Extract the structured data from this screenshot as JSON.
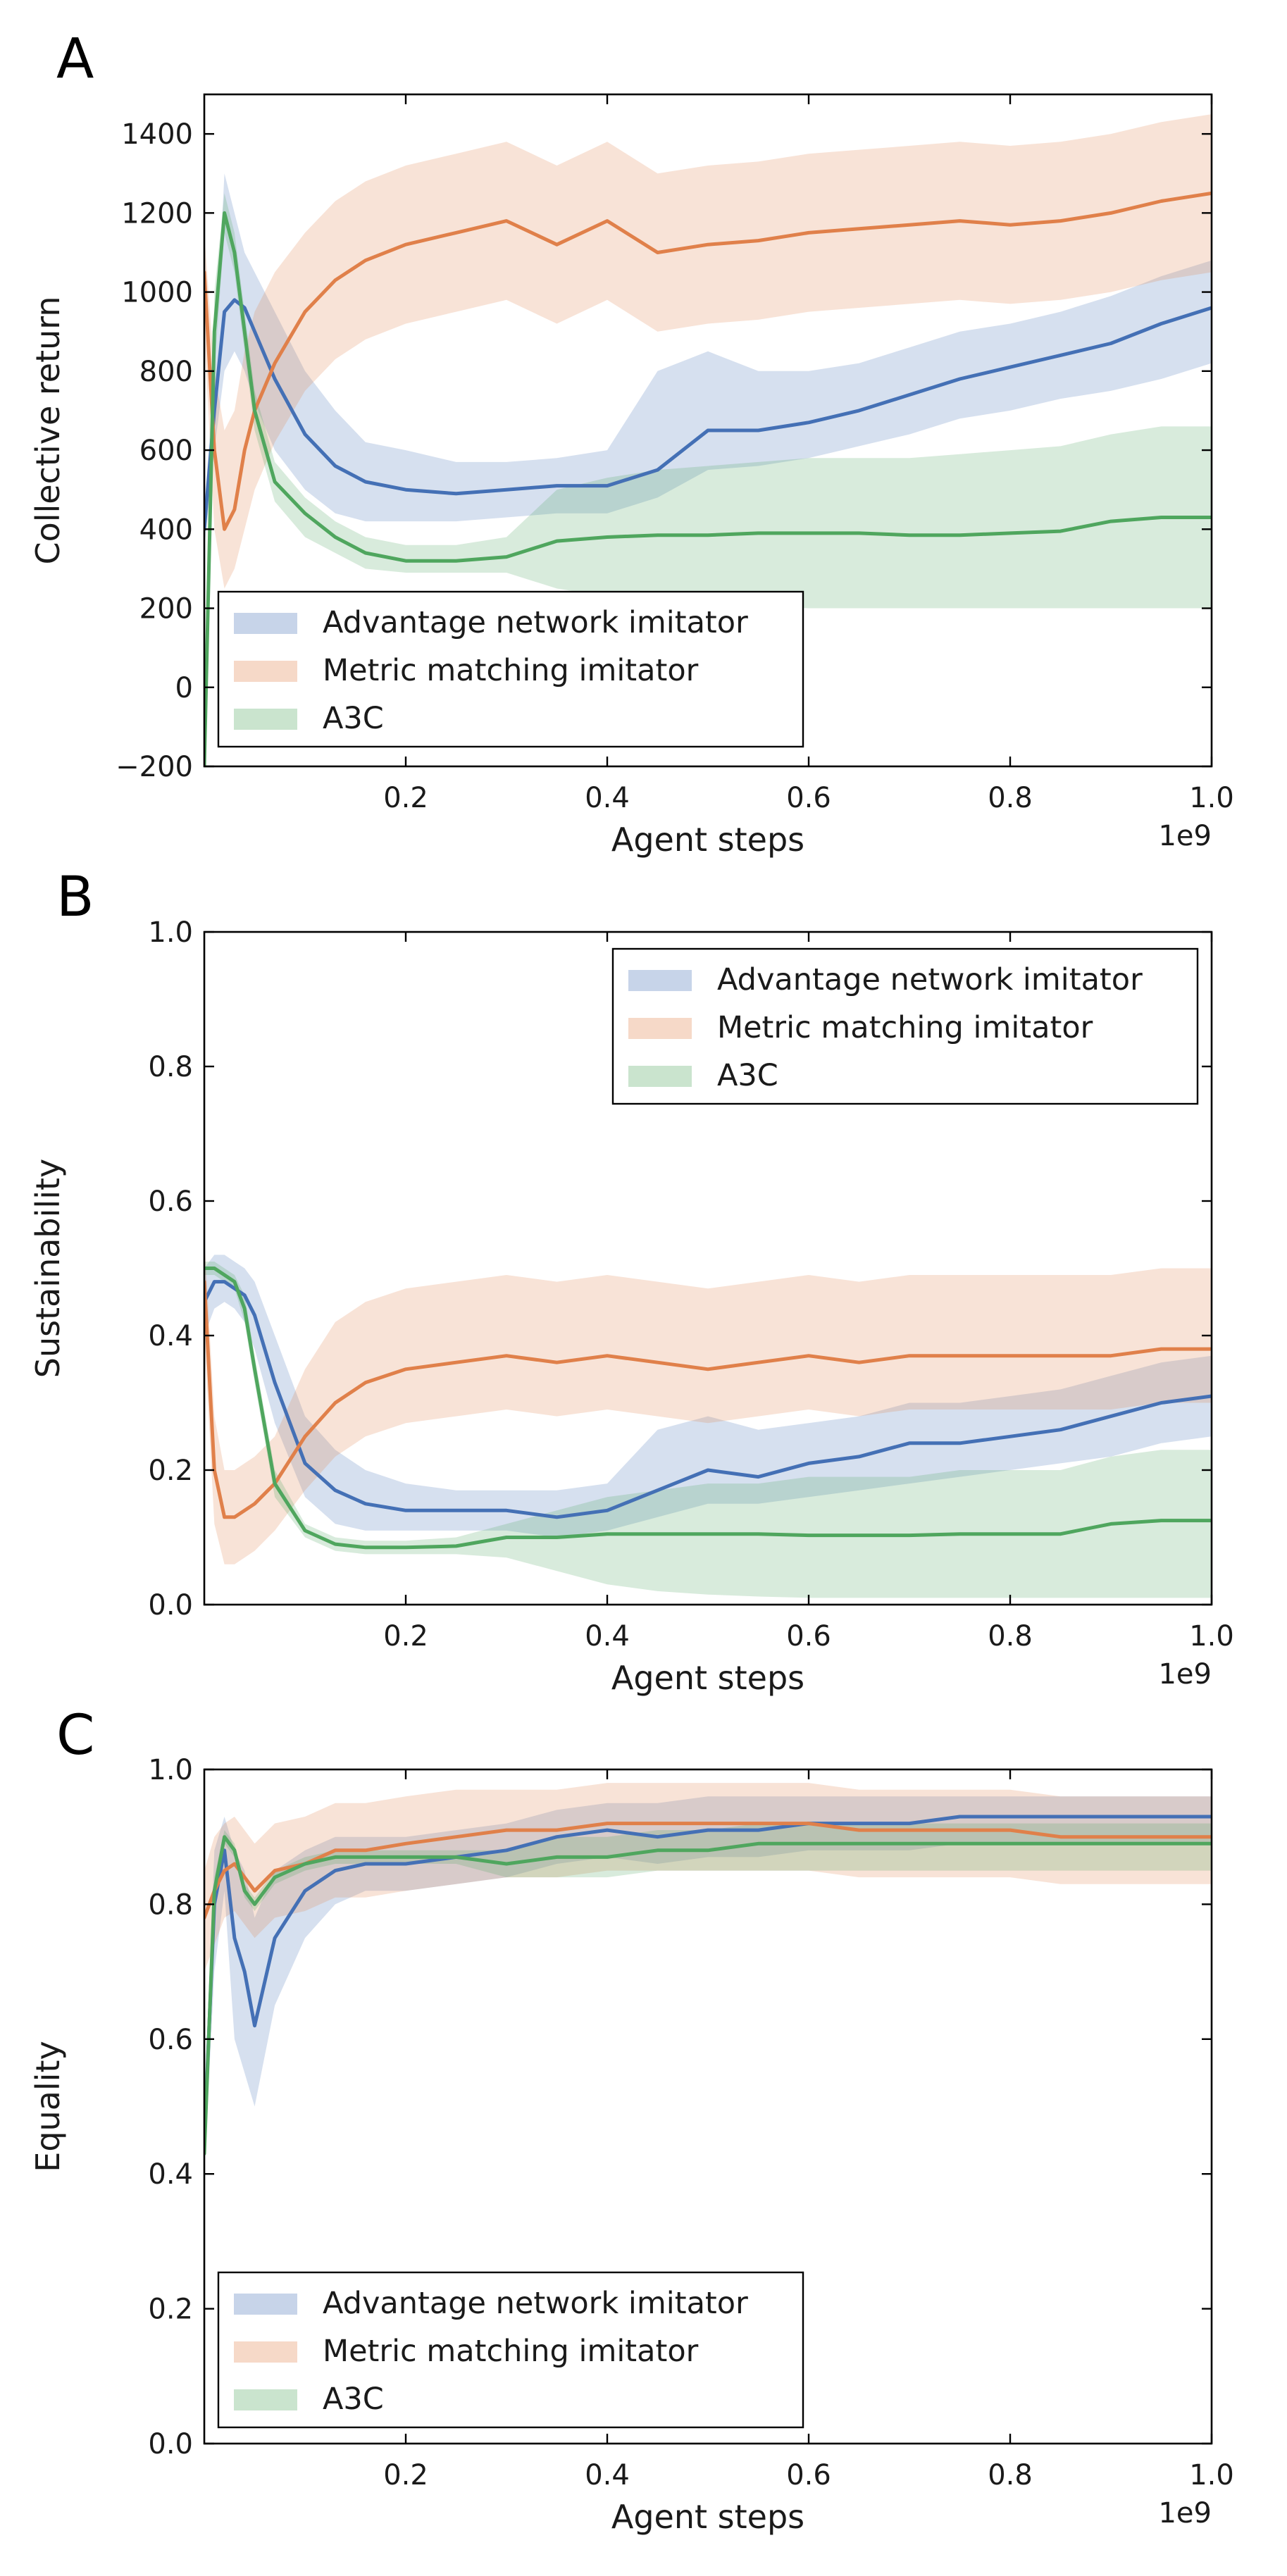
{
  "figure": {
    "colors": {
      "advantage": "#4470b5",
      "metric": "#e0804a",
      "a3c": "#4fa65e"
    },
    "band_opacity": 0.22
  },
  "chart_data": [
    {
      "panel": "A",
      "type": "line",
      "title": "",
      "xlabel": "Agent steps",
      "ylabel": "Collective return",
      "x_offset_label": "1e9",
      "xlim": [
        0,
        1.0
      ],
      "ylim": [
        -200,
        1500
      ],
      "xticks": [
        0.2,
        0.4,
        0.6,
        0.8,
        1.0
      ],
      "xtick_labels": [
        "0.2",
        "0.4",
        "0.6",
        "0.8",
        "1.0"
      ],
      "yticks": [
        -200,
        0,
        200,
        400,
        600,
        800,
        1000,
        1200,
        1400
      ],
      "ytick_labels": [
        "−200",
        "0",
        "200",
        "400",
        "600",
        "800",
        "1000",
        "1200",
        "1400"
      ],
      "legend_loc": "lower-left",
      "legend": [
        "Advantage network imitator",
        "Metric matching imitator",
        "A3C"
      ],
      "x": [
        0.0,
        0.01,
        0.02,
        0.03,
        0.04,
        0.05,
        0.07,
        0.1,
        0.13,
        0.16,
        0.2,
        0.25,
        0.3,
        0.35,
        0.4,
        0.45,
        0.5,
        0.55,
        0.6,
        0.65,
        0.7,
        0.75,
        0.8,
        0.85,
        0.9,
        0.95,
        1.0
      ],
      "series": [
        {
          "name": "Advantage network imitator",
          "key": "advantage",
          "values": [
            400,
            700,
            950,
            980,
            960,
            900,
            780,
            640,
            560,
            520,
            500,
            490,
            500,
            510,
            510,
            550,
            650,
            650,
            670,
            700,
            740,
            780,
            810,
            840,
            870,
            920,
            960
          ],
          "band_low": [
            350,
            600,
            800,
            850,
            800,
            720,
            600,
            500,
            440,
            420,
            420,
            420,
            430,
            440,
            440,
            480,
            550,
            560,
            580,
            610,
            640,
            680,
            700,
            730,
            750,
            780,
            820
          ],
          "band_high": [
            450,
            800,
            1300,
            1200,
            1100,
            1050,
            950,
            800,
            700,
            620,
            600,
            570,
            570,
            580,
            600,
            800,
            850,
            800,
            800,
            820,
            860,
            900,
            920,
            950,
            990,
            1040,
            1080
          ]
        },
        {
          "name": "Metric matching imitator",
          "key": "metric",
          "values": [
            1050,
            600,
            400,
            450,
            600,
            700,
            820,
            950,
            1030,
            1080,
            1120,
            1150,
            1180,
            1120,
            1180,
            1100,
            1120,
            1130,
            1150,
            1160,
            1170,
            1180,
            1170,
            1180,
            1200,
            1230,
            1250
          ],
          "band_low": [
            900,
            400,
            250,
            300,
            400,
            500,
            620,
            750,
            830,
            880,
            920,
            950,
            980,
            920,
            980,
            900,
            920,
            930,
            950,
            960,
            970,
            980,
            970,
            980,
            1000,
            1030,
            1050
          ],
          "band_high": [
            1150,
            800,
            650,
            700,
            850,
            950,
            1050,
            1150,
            1230,
            1280,
            1320,
            1350,
            1380,
            1320,
            1380,
            1300,
            1320,
            1330,
            1350,
            1360,
            1370,
            1380,
            1370,
            1380,
            1400,
            1430,
            1450
          ]
        },
        {
          "name": "A3C",
          "key": "a3c",
          "values": [
            -200,
            900,
            1200,
            1100,
            900,
            700,
            520,
            440,
            380,
            340,
            320,
            320,
            330,
            370,
            380,
            385,
            385,
            390,
            390,
            390,
            385,
            385,
            390,
            395,
            420,
            430,
            430
          ],
          "band_low": [
            -200,
            800,
            1150,
            1050,
            850,
            650,
            470,
            380,
            340,
            300,
            290,
            290,
            290,
            250,
            230,
            220,
            210,
            205,
            200,
            200,
            200,
            200,
            200,
            200,
            200,
            200,
            200
          ],
          "band_high": [
            -150,
            1000,
            1250,
            1150,
            950,
            750,
            570,
            480,
            420,
            380,
            360,
            360,
            380,
            500,
            530,
            550,
            560,
            570,
            580,
            580,
            580,
            590,
            600,
            610,
            640,
            660,
            660
          ]
        }
      ]
    },
    {
      "panel": "B",
      "type": "line",
      "title": "",
      "xlabel": "Agent steps",
      "ylabel": "Sustainability",
      "x_offset_label": "1e9",
      "xlim": [
        0,
        1.0
      ],
      "ylim": [
        0,
        1.0
      ],
      "xticks": [
        0.2,
        0.4,
        0.6,
        0.8,
        1.0
      ],
      "xtick_labels": [
        "0.2",
        "0.4",
        "0.6",
        "0.8",
        "1.0"
      ],
      "yticks": [
        0.0,
        0.2,
        0.4,
        0.6,
        0.8,
        1.0
      ],
      "ytick_labels": [
        "0.0",
        "0.2",
        "0.4",
        "0.6",
        "0.8",
        "1.0"
      ],
      "legend_loc": "upper-right",
      "legend": [
        "Advantage network imitator",
        "Metric matching imitator",
        "A3C"
      ],
      "x": [
        0.0,
        0.01,
        0.02,
        0.03,
        0.04,
        0.05,
        0.07,
        0.1,
        0.13,
        0.16,
        0.2,
        0.25,
        0.3,
        0.35,
        0.4,
        0.45,
        0.5,
        0.55,
        0.6,
        0.65,
        0.7,
        0.75,
        0.8,
        0.85,
        0.9,
        0.95,
        1.0
      ],
      "series": [
        {
          "name": "Advantage network imitator",
          "key": "advantage",
          "values": [
            0.45,
            0.48,
            0.48,
            0.47,
            0.46,
            0.43,
            0.33,
            0.21,
            0.17,
            0.15,
            0.14,
            0.14,
            0.14,
            0.13,
            0.14,
            0.17,
            0.2,
            0.19,
            0.21,
            0.22,
            0.24,
            0.24,
            0.25,
            0.26,
            0.28,
            0.3,
            0.31
          ],
          "band_low": [
            0.4,
            0.44,
            0.45,
            0.44,
            0.42,
            0.38,
            0.27,
            0.16,
            0.12,
            0.11,
            0.11,
            0.11,
            0.11,
            0.1,
            0.11,
            0.13,
            0.15,
            0.15,
            0.16,
            0.17,
            0.18,
            0.19,
            0.2,
            0.21,
            0.22,
            0.24,
            0.25
          ],
          "band_high": [
            0.5,
            0.52,
            0.52,
            0.51,
            0.5,
            0.48,
            0.4,
            0.28,
            0.23,
            0.2,
            0.18,
            0.17,
            0.17,
            0.17,
            0.18,
            0.26,
            0.28,
            0.26,
            0.27,
            0.28,
            0.3,
            0.3,
            0.31,
            0.32,
            0.34,
            0.36,
            0.37
          ]
        },
        {
          "name": "Metric matching imitator",
          "key": "metric",
          "values": [
            0.48,
            0.2,
            0.13,
            0.13,
            0.14,
            0.15,
            0.18,
            0.25,
            0.3,
            0.33,
            0.35,
            0.36,
            0.37,
            0.36,
            0.37,
            0.36,
            0.35,
            0.36,
            0.37,
            0.36,
            0.37,
            0.37,
            0.37,
            0.37,
            0.37,
            0.38,
            0.38
          ],
          "band_low": [
            0.4,
            0.12,
            0.06,
            0.06,
            0.07,
            0.08,
            0.11,
            0.17,
            0.22,
            0.25,
            0.27,
            0.28,
            0.29,
            0.28,
            0.29,
            0.28,
            0.27,
            0.28,
            0.29,
            0.28,
            0.29,
            0.29,
            0.29,
            0.29,
            0.29,
            0.3,
            0.3
          ],
          "band_high": [
            0.55,
            0.28,
            0.2,
            0.2,
            0.21,
            0.22,
            0.25,
            0.35,
            0.42,
            0.45,
            0.47,
            0.48,
            0.49,
            0.48,
            0.49,
            0.48,
            0.47,
            0.48,
            0.49,
            0.48,
            0.49,
            0.49,
            0.49,
            0.49,
            0.49,
            0.5,
            0.5
          ]
        },
        {
          "name": "A3C",
          "key": "a3c",
          "values": [
            0.5,
            0.5,
            0.49,
            0.48,
            0.44,
            0.35,
            0.18,
            0.11,
            0.09,
            0.085,
            0.085,
            0.087,
            0.1,
            0.1,
            0.105,
            0.105,
            0.105,
            0.105,
            0.103,
            0.103,
            0.103,
            0.105,
            0.105,
            0.105,
            0.12,
            0.125,
            0.125
          ],
          "band_low": [
            0.49,
            0.49,
            0.48,
            0.47,
            0.42,
            0.33,
            0.16,
            0.1,
            0.08,
            0.075,
            0.075,
            0.075,
            0.07,
            0.05,
            0.03,
            0.02,
            0.015,
            0.012,
            0.01,
            0.01,
            0.01,
            0.01,
            0.01,
            0.01,
            0.01,
            0.01,
            0.01
          ],
          "band_high": [
            0.51,
            0.51,
            0.5,
            0.49,
            0.46,
            0.37,
            0.2,
            0.12,
            0.1,
            0.095,
            0.095,
            0.1,
            0.12,
            0.14,
            0.16,
            0.17,
            0.18,
            0.18,
            0.19,
            0.19,
            0.19,
            0.2,
            0.2,
            0.2,
            0.22,
            0.23,
            0.23
          ]
        }
      ]
    },
    {
      "panel": "C",
      "type": "line",
      "title": "",
      "xlabel": "Agent steps",
      "ylabel": "Equality",
      "x_offset_label": "1e9",
      "xlim": [
        0,
        1.0
      ],
      "ylim": [
        0,
        1.0
      ],
      "xticks": [
        0.2,
        0.4,
        0.6,
        0.8,
        1.0
      ],
      "xtick_labels": [
        "0.2",
        "0.4",
        "0.6",
        "0.8",
        "1.0"
      ],
      "yticks": [
        0.0,
        0.2,
        0.4,
        0.6,
        0.8,
        1.0
      ],
      "ytick_labels": [
        "0.0",
        "0.2",
        "0.4",
        "0.6",
        "0.8",
        "1.0"
      ],
      "legend_loc": "lower-left",
      "legend": [
        "Advantage network imitator",
        "Metric matching imitator",
        "A3C"
      ],
      "x": [
        0.0,
        0.01,
        0.02,
        0.03,
        0.04,
        0.05,
        0.07,
        0.1,
        0.13,
        0.16,
        0.2,
        0.25,
        0.3,
        0.35,
        0.4,
        0.45,
        0.5,
        0.55,
        0.6,
        0.65,
        0.7,
        0.75,
        0.8,
        0.85,
        0.9,
        0.95,
        1.0
      ],
      "series": [
        {
          "name": "Advantage network imitator",
          "key": "advantage",
          "values": [
            0.45,
            0.8,
            0.88,
            0.75,
            0.7,
            0.62,
            0.75,
            0.82,
            0.85,
            0.86,
            0.86,
            0.87,
            0.88,
            0.9,
            0.91,
            0.9,
            0.91,
            0.91,
            0.92,
            0.92,
            0.92,
            0.93,
            0.93,
            0.93,
            0.93,
            0.93,
            0.93
          ],
          "band_low": [
            0.4,
            0.7,
            0.82,
            0.6,
            0.55,
            0.5,
            0.65,
            0.75,
            0.8,
            0.82,
            0.82,
            0.83,
            0.84,
            0.86,
            0.87,
            0.86,
            0.87,
            0.87,
            0.88,
            0.88,
            0.88,
            0.89,
            0.89,
            0.89,
            0.89,
            0.89,
            0.89
          ],
          "band_high": [
            0.5,
            0.88,
            0.93,
            0.88,
            0.85,
            0.78,
            0.85,
            0.88,
            0.9,
            0.9,
            0.9,
            0.91,
            0.92,
            0.94,
            0.95,
            0.95,
            0.96,
            0.96,
            0.96,
            0.96,
            0.96,
            0.96,
            0.96,
            0.96,
            0.96,
            0.96,
            0.96
          ]
        },
        {
          "name": "Metric matching imitator",
          "key": "metric",
          "values": [
            0.78,
            0.82,
            0.85,
            0.86,
            0.84,
            0.82,
            0.85,
            0.86,
            0.88,
            0.88,
            0.89,
            0.9,
            0.91,
            0.91,
            0.92,
            0.92,
            0.92,
            0.92,
            0.92,
            0.91,
            0.91,
            0.91,
            0.91,
            0.9,
            0.9,
            0.9,
            0.9
          ],
          "band_low": [
            0.7,
            0.74,
            0.78,
            0.79,
            0.77,
            0.75,
            0.78,
            0.79,
            0.81,
            0.81,
            0.82,
            0.83,
            0.84,
            0.84,
            0.85,
            0.85,
            0.85,
            0.85,
            0.85,
            0.84,
            0.84,
            0.84,
            0.84,
            0.83,
            0.83,
            0.83,
            0.83
          ],
          "band_high": [
            0.85,
            0.9,
            0.92,
            0.93,
            0.91,
            0.89,
            0.92,
            0.93,
            0.95,
            0.95,
            0.96,
            0.97,
            0.97,
            0.97,
            0.98,
            0.98,
            0.98,
            0.98,
            0.98,
            0.97,
            0.97,
            0.97,
            0.97,
            0.96,
            0.96,
            0.96,
            0.96
          ]
        },
        {
          "name": "A3C",
          "key": "a3c",
          "values": [
            0.43,
            0.82,
            0.9,
            0.88,
            0.82,
            0.8,
            0.84,
            0.86,
            0.87,
            0.87,
            0.87,
            0.87,
            0.86,
            0.87,
            0.87,
            0.88,
            0.88,
            0.89,
            0.89,
            0.89,
            0.89,
            0.89,
            0.89,
            0.89,
            0.89,
            0.89,
            0.89
          ],
          "band_low": [
            0.42,
            0.8,
            0.89,
            0.87,
            0.81,
            0.79,
            0.83,
            0.85,
            0.86,
            0.86,
            0.86,
            0.86,
            0.84,
            0.84,
            0.84,
            0.85,
            0.85,
            0.85,
            0.85,
            0.85,
            0.85,
            0.85,
            0.85,
            0.85,
            0.85,
            0.85,
            0.85
          ],
          "band_high": [
            0.44,
            0.84,
            0.91,
            0.89,
            0.83,
            0.81,
            0.85,
            0.87,
            0.88,
            0.88,
            0.88,
            0.88,
            0.88,
            0.9,
            0.9,
            0.91,
            0.91,
            0.92,
            0.92,
            0.92,
            0.92,
            0.92,
            0.92,
            0.92,
            0.92,
            0.92,
            0.92
          ]
        }
      ]
    }
  ]
}
